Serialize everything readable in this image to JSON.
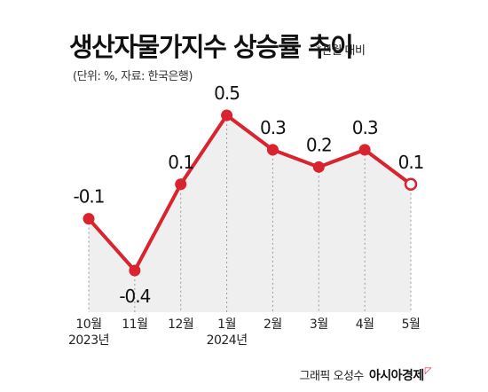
{
  "chart_data": {
    "type": "line",
    "title": "생산자물가지수 상승률 추이",
    "note": "*전월 대비",
    "source": "(단위: %, 자료: 한국은행)",
    "categories": [
      "10월",
      "11월",
      "12월",
      "1월",
      "2월",
      "3월",
      "4월",
      "5월"
    ],
    "year_labels": [
      "2023년",
      "",
      "",
      "2024년",
      "",
      "",
      "",
      ""
    ],
    "series": [
      {
        "values": [
          -0.1,
          -0.4,
          0.1,
          0.5,
          0.3,
          0.2,
          0.3,
          0.1
        ]
      }
    ],
    "value_labels": [
      "-0.1",
      "-0.4",
      "0.1",
      "0.5",
      "0.3",
      "0.2",
      "0.3",
      "0.1"
    ],
    "ylim": [
      -0.4,
      0.5
    ],
    "grid": "vertical-dotted",
    "colors": {
      "line": "#d9232e",
      "area": "#efefef",
      "last_point_fill": "#ffffff"
    }
  },
  "credit": {
    "text": "그래픽 오성수",
    "brand": "아시아경제",
    "brand_mark": "ᄆ"
  }
}
